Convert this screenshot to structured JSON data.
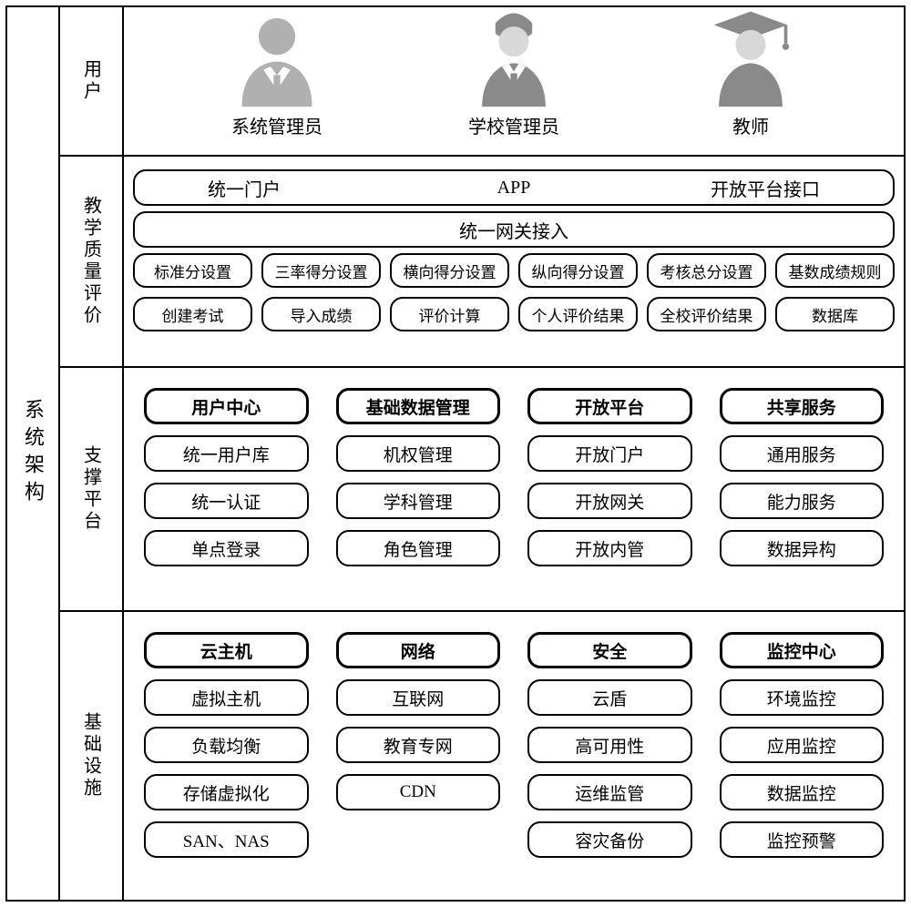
{
  "title": "系统架构",
  "rows": {
    "users": {
      "label": "用户",
      "items": [
        {
          "label": "系统管理员",
          "icon": "admin",
          "color": "#b0b0b0"
        },
        {
          "label": "学校管理员",
          "icon": "school",
          "color": "#8a8a8a"
        },
        {
          "label": "教师",
          "icon": "teacher",
          "color": "#8a8a8a"
        }
      ]
    },
    "quality": {
      "label": "教学质量评价",
      "top": {
        "left": "统一门户",
        "mid": "APP",
        "right": "开放平台接口"
      },
      "gateway": "统一网关接入",
      "cells": [
        "标准分设置",
        "三率得分设置",
        "横向得分设置",
        "纵向得分设置",
        "考核总分设置",
        "基数成绩规则",
        "创建考试",
        "导入成绩",
        "评价计算",
        "个人评价结果",
        "全校评价结果",
        "数据库"
      ]
    },
    "support": {
      "label": "支撑平台",
      "columns": [
        {
          "header": "用户中心",
          "items": [
            "统一用户库",
            "统一认证",
            "单点登录"
          ]
        },
        {
          "header": "基础数据管理",
          "items": [
            "机权管理",
            "学科管理",
            "角色管理"
          ]
        },
        {
          "header": "开放平台",
          "items": [
            "开放门户",
            "开放网关",
            "开放内管"
          ]
        },
        {
          "header": "共享服务",
          "items": [
            "通用服务",
            "能力服务",
            "数据异构"
          ]
        }
      ]
    },
    "infra": {
      "label": "基础设施",
      "columns": [
        {
          "header": "云主机",
          "items": [
            "虚拟主机",
            "负载均衡",
            "存储虚拟化",
            "SAN、NAS"
          ]
        },
        {
          "header": "网络",
          "items": [
            "互联网",
            "教育专网",
            "CDN",
            ""
          ]
        },
        {
          "header": "安全",
          "items": [
            "云盾",
            "高可用性",
            "运维监管",
            "容灾备份"
          ]
        },
        {
          "header": "监控中心",
          "items": [
            "环境监控",
            "应用监控",
            "数据监控",
            "监控预警"
          ]
        }
      ]
    }
  },
  "style": {
    "border_color": "#000000",
    "background": "#ffffff",
    "pill_radius": 14,
    "font": "SimSun",
    "icon_gray_light": "#b0b0b0",
    "icon_gray_dark": "#8a8a8a"
  }
}
